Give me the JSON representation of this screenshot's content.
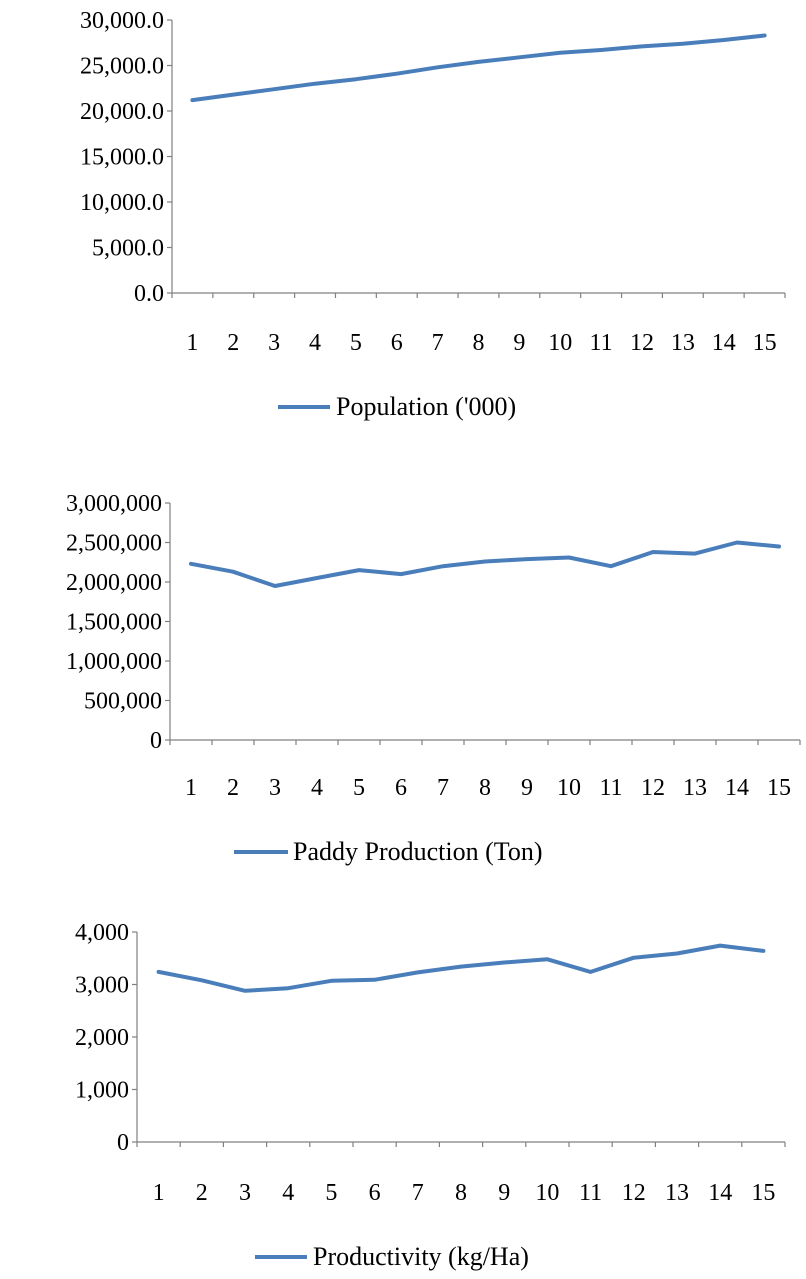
{
  "chart_data": [
    {
      "type": "line",
      "x": [
        1,
        2,
        3,
        4,
        5,
        6,
        7,
        8,
        9,
        10,
        11,
        12,
        13,
        14,
        15
      ],
      "x_tick_labels": [
        "1",
        "2",
        "3",
        "4",
        "5",
        "6",
        "7",
        "8",
        "9",
        "10",
        "11",
        "12",
        "13",
        "14",
        "15"
      ],
      "series": [
        {
          "name": "Population ('000)",
          "color": "#4a7ebb",
          "values": [
            21200,
            21800,
            22400,
            23000,
            23500,
            24100,
            24800,
            25400,
            25900,
            26400,
            26700,
            27100,
            27400,
            27800,
            28300
          ]
        }
      ],
      "ylim": [
        0,
        30000
      ],
      "y_ticks": [
        0,
        5000,
        10000,
        15000,
        20000,
        25000,
        30000
      ],
      "y_tick_labels": [
        "0.0",
        "5,000.0",
        "10,000.0",
        "15,000.0",
        "20,000.0",
        "25,000.0",
        "30,000.0"
      ],
      "legend": "bottom",
      "grid": false
    },
    {
      "type": "line",
      "x": [
        1,
        2,
        3,
        4,
        5,
        6,
        7,
        8,
        9,
        10,
        11,
        12,
        13,
        14,
        15
      ],
      "x_tick_labels": [
        "1",
        "2",
        "3",
        "4",
        "5",
        "6",
        "7",
        "8",
        "9",
        "10",
        "11",
        "12",
        "13",
        "14",
        "15"
      ],
      "series": [
        {
          "name": "Paddy Production (Ton)",
          "color": "#4a7ebb",
          "values": [
            2230000,
            2130000,
            1950000,
            2050000,
            2150000,
            2100000,
            2200000,
            2260000,
            2290000,
            2310000,
            2200000,
            2380000,
            2360000,
            2500000,
            2450000
          ]
        }
      ],
      "ylim": [
        0,
        3000000
      ],
      "y_ticks": [
        0,
        500000,
        1000000,
        1500000,
        2000000,
        2500000,
        3000000
      ],
      "y_tick_labels": [
        "0",
        "500,000",
        "1,000,000",
        "1,500,000",
        "2,000,000",
        "2,500,000",
        "3,000,000"
      ],
      "legend": "bottom",
      "grid": false
    },
    {
      "type": "line",
      "x": [
        1,
        2,
        3,
        4,
        5,
        6,
        7,
        8,
        9,
        10,
        11,
        12,
        13,
        14,
        15
      ],
      "x_tick_labels": [
        "1",
        "2",
        "3",
        "4",
        "5",
        "6",
        "7",
        "8",
        "9",
        "10",
        "11",
        "12",
        "13",
        "14",
        "15"
      ],
      "series": [
        {
          "name": "Productivity (kg/Ha)",
          "color": "#4a7ebb",
          "values": [
            3240,
            3080,
            2880,
            2930,
            3070,
            3090,
            3230,
            3340,
            3420,
            3480,
            3240,
            3510,
            3590,
            3740,
            3640
          ]
        }
      ],
      "ylim": [
        0,
        4000
      ],
      "y_ticks": [
        0,
        1000,
        2000,
        3000,
        4000
      ],
      "y_tick_labels": [
        "0",
        "1,000",
        "2,000",
        "3,000",
        "4,000"
      ],
      "legend": "bottom",
      "grid": false
    }
  ]
}
